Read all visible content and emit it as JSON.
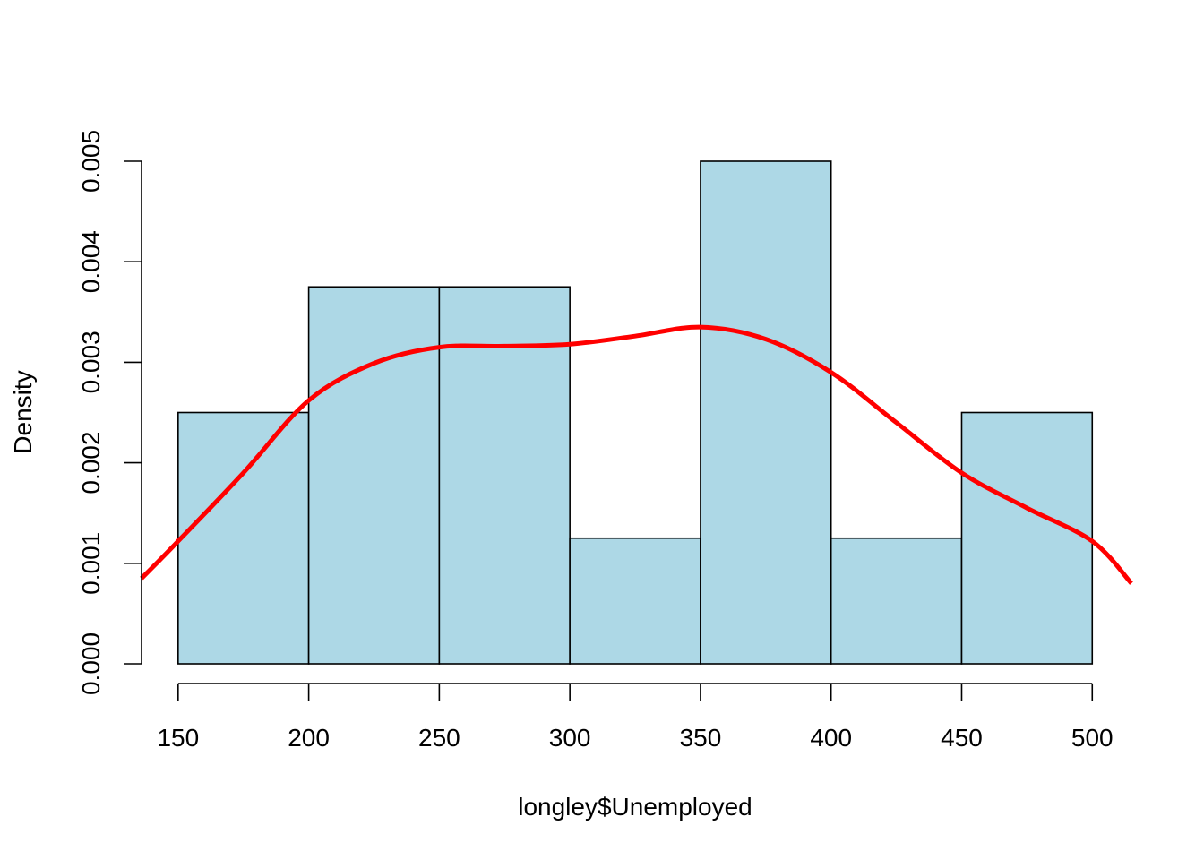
{
  "chart_data": {
    "type": "bar",
    "subtype": "histogram-with-density",
    "title": "",
    "xlabel": "longley$Unemployed",
    "ylabel": "Density",
    "bin_edges": [
      150,
      200,
      250,
      300,
      350,
      400,
      450,
      500
    ],
    "values": [
      0.0025,
      0.00375,
      0.00375,
      0.00125,
      0.005,
      0.00125,
      0.0025
    ],
    "x_ticks": [
      "150",
      "200",
      "250",
      "300",
      "350",
      "400",
      "450",
      "500"
    ],
    "y_ticks": [
      "0.000",
      "0.001",
      "0.002",
      "0.003",
      "0.004",
      "0.005"
    ],
    "xlim": [
      136,
      515
    ],
    "ylim": [
      0,
      0.005
    ],
    "grid": false,
    "colors": {
      "bar_fill": "#add8e6",
      "bar_stroke": "#000000",
      "density_line": "#ff0000"
    },
    "density_curve": {
      "x": [
        136,
        150,
        175,
        200,
        225,
        250,
        275,
        300,
        325,
        350,
        375,
        400,
        425,
        450,
        475,
        500,
        515
      ],
      "y": [
        0.00085,
        0.00122,
        0.0019,
        0.00262,
        0.00299,
        0.00315,
        0.00316,
        0.00318,
        0.00326,
        0.00335,
        0.00323,
        0.0029,
        0.0024,
        0.0019,
        0.00155,
        0.00122,
        0.0008
      ]
    }
  }
}
